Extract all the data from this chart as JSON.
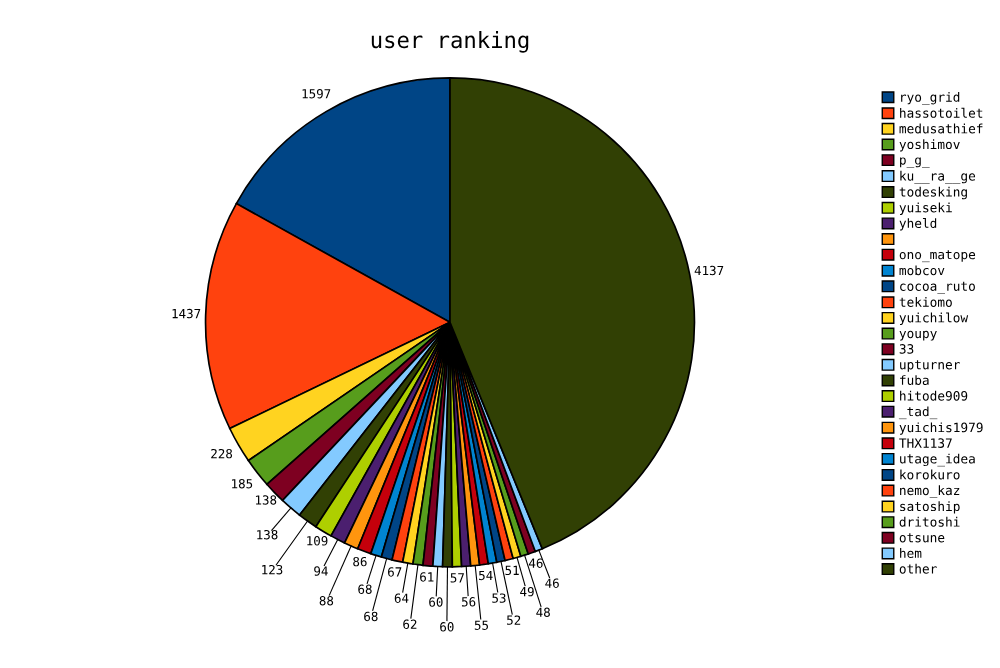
{
  "chart_data": {
    "type": "pie",
    "title": "user ranking",
    "categories": [
      "ryo_grid",
      "hassotoilet",
      "medusathief",
      "yoshimov",
      "p_g_",
      "ku__ra__ge",
      "todesking",
      "yuiseki",
      "yheld",
      null,
      "ono_matope",
      "mobcov",
      "cocoa_ruto",
      "tekiomo",
      "yuichilow",
      "youpy",
      "33",
      "upturner",
      "fuba",
      "hitode909",
      "_tad_",
      "yuichis1979",
      "THX1137",
      "utage_idea",
      "korokuro",
      "nemo_kaz",
      "satoship",
      "dritoshi",
      "otsune",
      "hem",
      "other"
    ],
    "values": [
      1597,
      1437,
      228,
      185,
      138,
      138,
      123,
      109,
      94,
      88,
      86,
      68,
      68,
      67,
      64,
      62,
      61,
      60,
      60,
      57,
      56,
      55,
      54,
      53,
      52,
      51,
      49,
      48,
      46,
      46,
      4137
    ],
    "colors": [
      "#004586",
      "#ff420e",
      "#ffd320",
      "#579d1c",
      "#7e0021",
      "#83caff",
      "#314004",
      "#aecf00",
      "#4b1f6f",
      "#ff950e",
      "#c5000b",
      "#0084d1",
      "#004586",
      "#ff420e",
      "#ffd320",
      "#579d1c",
      "#7e0021",
      "#83caff",
      "#314004",
      "#aecf00",
      "#4b1f6f",
      "#ff950e",
      "#c5000b",
      "#0084d1",
      "#004586",
      "#ff420e",
      "#ffd320",
      "#579d1c",
      "#7e0021",
      "#83caff",
      "#314004"
    ],
    "data_labels": true,
    "legend": "right"
  }
}
